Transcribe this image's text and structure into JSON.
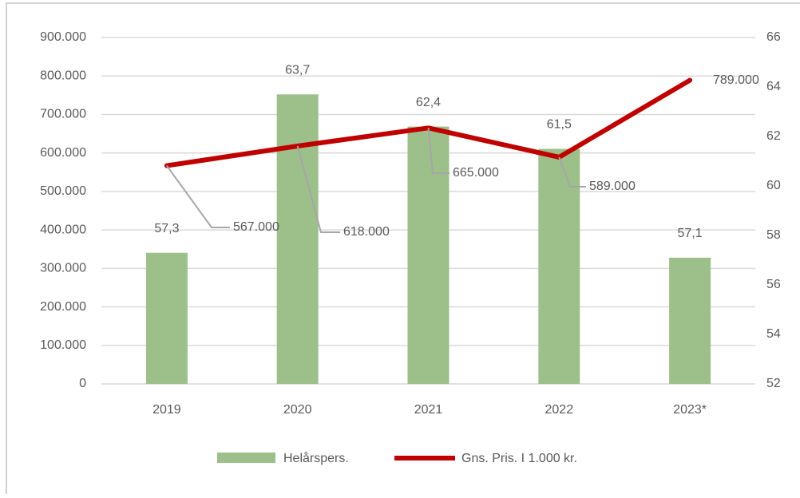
{
  "chart_data": {
    "type": "bar-line",
    "categories": [
      "2019",
      "2020",
      "2021",
      "2022",
      "2023*"
    ],
    "series": [
      {
        "name": "Helårspers.",
        "type": "bar",
        "axis": "y2",
        "color": "#9dc08b",
        "values": [
          57.3,
          63.7,
          62.4,
          61.5,
          57.1
        ],
        "value_labels": [
          "57,3",
          "63,7",
          "62,4",
          "61,5",
          "57,1"
        ]
      },
      {
        "name": "Gns. Pris. I 1.000 kr.",
        "type": "line",
        "axis": "y",
        "color": "#c00000",
        "values": [
          567000,
          618000,
          665000,
          589000,
          789000
        ],
        "value_labels": [
          "567.000",
          "618.000",
          "665.000",
          "589.000",
          "789.000"
        ]
      }
    ],
    "ylim": [
      0,
      900000
    ],
    "yticks": [
      0,
      {
        "value": 100000,
        "label": "100.000"
      },
      {
        "value": 200000,
        "label": "200.000"
      },
      {
        "value": 300000,
        "label": "300.000"
      },
      {
        "value": 400000,
        "label": "400.000"
      },
      {
        "value": 500000,
        "label": "500.000"
      },
      {
        "value": 600000,
        "label": "600.000"
      },
      {
        "value": 700000,
        "label": "700.000"
      },
      {
        "value": 800000,
        "label": "800.000"
      },
      {
        "value": 900000,
        "label": "900.000"
      }
    ],
    "y2lim": [
      52,
      66
    ],
    "y2ticks": [
      52,
      54,
      56,
      58,
      60,
      62,
      64,
      66
    ],
    "grid": true,
    "legend": "bottom"
  }
}
